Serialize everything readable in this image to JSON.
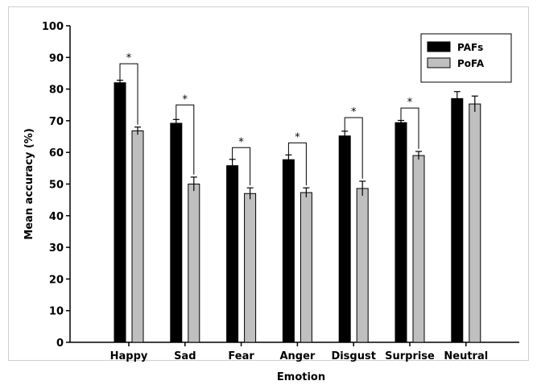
{
  "chart_data": {
    "type": "bar",
    "title": "",
    "xlabel": "Emotion",
    "ylabel": "Mean accuracy (%)",
    "ylim": [
      0,
      100
    ],
    "yticks": [
      0,
      10,
      20,
      30,
      40,
      50,
      60,
      70,
      80,
      90,
      100
    ],
    "categories": [
      "Happy",
      "Sad",
      "Fear",
      "Anger",
      "Disgust",
      "Surprise",
      "Neutral"
    ],
    "series": [
      {
        "name": "PAFs",
        "color": "#000000",
        "values": [
          82,
          69.2,
          55.8,
          57.7,
          65.2,
          69.4,
          77.0
        ],
        "error": [
          0.8,
          1.2,
          2.0,
          1.5,
          1.5,
          0.7,
          2.2
        ]
      },
      {
        "name": "PoFA",
        "color": "#bfbfbf",
        "values": [
          66.8,
          50.0,
          47.0,
          47.3,
          48.6,
          59.0,
          75.3
        ],
        "error": [
          1.2,
          2.2,
          1.8,
          1.5,
          2.3,
          1.3,
          2.5
        ]
      }
    ],
    "significance": [
      {
        "category": "Happy",
        "label": "*",
        "ymin": 82.8,
        "ymax": 88.0
      },
      {
        "category": "Sad",
        "label": "*",
        "ymin": 70.4,
        "ymax": 75.0
      },
      {
        "category": "Fear",
        "label": "*",
        "ymin": 57.8,
        "ymax": 61.5
      },
      {
        "category": "Anger",
        "label": "*",
        "ymin": 59.2,
        "ymax": 63.0
      },
      {
        "category": "Disgust",
        "label": "*",
        "ymin": 66.7,
        "ymax": 71.0
      },
      {
        "category": "Surprise",
        "label": "*",
        "ymin": 70.1,
        "ymax": 74.0
      }
    ],
    "grid": false,
    "legend_position": "top-right"
  }
}
